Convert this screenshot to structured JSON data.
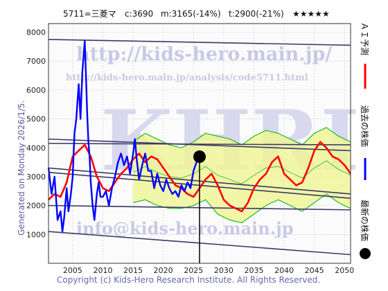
{
  "header": {
    "code_name": "5711=三菱マ",
    "current": "c:3690",
    "mid_target": "m:3165(-14%)",
    "low_target": "t:2900(-21%)",
    "rating": "★★★★★"
  },
  "side_text": "Generated on Monday 2026/1/5.",
  "footer": "Copyright (c) Kids-Hero Research Institute. All Rights Reserved.",
  "watermarks": {
    "url_main": "http://kids-hero.main.jp/",
    "url_analysis": "http://kids-hero.main.jp/analysis/code5711.html",
    "email": "info@kids-hero.main.jp",
    "logo": "KHRI"
  },
  "legend": {
    "ai": "ＡＩ予測",
    "past": "過去の株価",
    "latest": "最新の株価"
  },
  "colors": {
    "ai_line": "#ff0000",
    "past_line": "#0000ff",
    "band_line": "#22bb22",
    "band_fill": "#f0f59a",
    "trend_lines": "#3a3a66",
    "marker": "#000000"
  },
  "chart_data": {
    "type": "line",
    "xlim": [
      2001,
      2051
    ],
    "ylim": [
      0,
      8300
    ],
    "x_ticks": [
      2005,
      2010,
      2015,
      2020,
      2025,
      2030,
      2035,
      2040,
      2045,
      2050
    ],
    "y_ticks": [
      1000,
      2000,
      3000,
      4000,
      5000,
      6000,
      7000,
      8000
    ],
    "grid": true,
    "current_point": {
      "x": 2026.0,
      "y": 3690
    },
    "series": [
      {
        "name": "過去の株価",
        "x": [
          2001.0,
          2001.5,
          2002.0,
          2002.5,
          2003.0,
          2003.3,
          2003.6,
          2004.0,
          2004.3,
          2004.7,
          2005.0,
          2005.3,
          2005.6,
          2006.0,
          2006.3,
          2006.6,
          2007.0,
          2007.2,
          2007.4,
          2007.6,
          2007.8,
          2008.0,
          2008.3,
          2008.6,
          2009.0,
          2009.3,
          2009.6,
          2010.0,
          2010.5,
          2011.0,
          2011.5,
          2012.0,
          2012.5,
          2013.0,
          2013.5,
          2014.0,
          2014.5,
          2015.0,
          2015.3,
          2015.6,
          2016.0,
          2016.5,
          2017.0,
          2017.5,
          2018.0,
          2018.5,
          2019.0,
          2019.5,
          2020.0,
          2020.5,
          2021.0,
          2021.5,
          2022.0,
          2022.5,
          2023.0,
          2023.5,
          2024.0,
          2024.5,
          2025.0,
          2025.5,
          2026.0
        ],
        "y": [
          3300,
          2400,
          3000,
          1500,
          1800,
          1100,
          1600,
          2600,
          1800,
          2400,
          3000,
          4500,
          5000,
          6200,
          5000,
          6600,
          7700,
          6500,
          5200,
          4200,
          3700,
          2800,
          2000,
          1500,
          2400,
          2800,
          2300,
          2300,
          2500,
          2000,
          2600,
          3000,
          3500,
          3800,
          3400,
          3700,
          3100,
          3800,
          4300,
          3600,
          2900,
          3400,
          3800,
          3200,
          3200,
          2600,
          3100,
          2700,
          2500,
          2900,
          2600,
          2400,
          2500,
          2300,
          2700,
          2500,
          2800,
          2600,
          3200,
          3500,
          3690
        ]
      },
      {
        "name": "ＡＩ予測",
        "x": [
          2001.0,
          2002.0,
          2003.0,
          2004.0,
          2005.0,
          2006.0,
          2007.0,
          2008.0,
          2009.0,
          2010.0,
          2011.0,
          2012.0,
          2013.0,
          2014.0,
          2015.0,
          2016.0,
          2017.0,
          2018.0,
          2019.0,
          2020.0,
          2021.0,
          2022.0,
          2023.0,
          2024.0,
          2025.0,
          2026.0,
          2027.0,
          2028.0,
          2029.0,
          2030.0,
          2031.0,
          2032.0,
          2033.0,
          2034.0,
          2035.0,
          2036.0,
          2037.0,
          2038.0,
          2039.0,
          2040.0,
          2041.0,
          2042.0,
          2043.0,
          2044.0,
          2045.0,
          2046.0,
          2047.0,
          2048.0,
          2049.0,
          2050.0,
          2051.0
        ],
        "y": [
          2200,
          2400,
          2300,
          2800,
          3700,
          3900,
          4100,
          3700,
          3000,
          2600,
          2500,
          2800,
          3100,
          3300,
          3600,
          3800,
          3500,
          3700,
          3600,
          3300,
          3000,
          2700,
          2600,
          2400,
          2300,
          2600,
          2900,
          3100,
          2700,
          2200,
          2000,
          1900,
          1800,
          2100,
          2600,
          2900,
          3100,
          3500,
          3700,
          3100,
          2900,
          2700,
          2800,
          3300,
          3900,
          4200,
          4000,
          3700,
          3600,
          3400,
          3100
        ]
      }
    ],
    "bands": [
      {
        "x": [
          2015,
          2017,
          2019,
          2021,
          2023,
          2025,
          2027,
          2029,
          2031,
          2033,
          2035,
          2037,
          2039,
          2041,
          2043,
          2045,
          2047,
          2049,
          2051
        ],
        "upper": [
          4200,
          4500,
          4300,
          4100,
          4000,
          4200,
          4500,
          4400,
          4300,
          4100,
          4400,
          4600,
          4500,
          4300,
          4100,
          4500,
          4700,
          4400,
          4200
        ],
        "lower": [
          2100,
          2200,
          2000,
          1900,
          1900,
          2000,
          2200,
          1700,
          1500,
          1400,
          1700,
          2000,
          2200,
          2000,
          1800,
          2100,
          2400,
          2100,
          1900
        ]
      }
    ],
    "trend_lines": [
      {
        "x": [
          2001,
          2051
        ],
        "y": [
          7750,
          7550
        ]
      },
      {
        "x": [
          2001,
          2051
        ],
        "y": [
          4300,
          3900
        ]
      },
      {
        "x": [
          2001,
          2051
        ],
        "y": [
          3300,
          2400
        ]
      },
      {
        "x": [
          2001,
          2051
        ],
        "y": [
          3150,
          2250
        ]
      },
      {
        "x": [
          2001,
          2051
        ],
        "y": [
          2000,
          1850
        ]
      },
      {
        "x": [
          2001,
          2051
        ],
        "y": [
          1100,
          300
        ]
      },
      {
        "x": [
          2001,
          2051
        ],
        "y": [
          4150,
          4100
        ]
      }
    ]
  }
}
